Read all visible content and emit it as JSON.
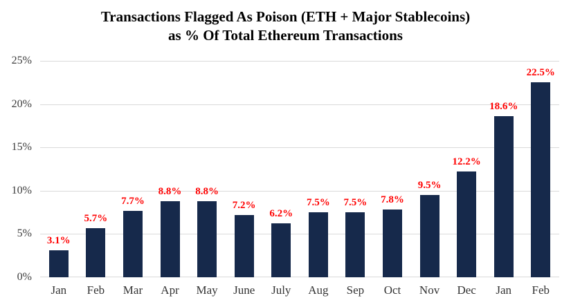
{
  "chart_data": {
    "type": "bar",
    "title": "Transactions Flagged As Poison (ETH + Major Stablecoins) as % Of Total Ethereum Transactions",
    "title_line1": "Transactions Flagged As Poison (ETH + Major Stablecoins)",
    "title_line2": "as % Of Total Ethereum Transactions",
    "categories": [
      "Jan",
      "Feb",
      "Mar",
      "Apr",
      "May",
      "June",
      "July",
      "Aug",
      "Sep",
      "Oct",
      "Nov",
      "Dec",
      "Jan",
      "Feb"
    ],
    "values": [
      3.1,
      5.7,
      7.7,
      8.8,
      8.8,
      7.2,
      6.2,
      7.5,
      7.5,
      7.8,
      9.5,
      12.2,
      18.6,
      22.5
    ],
    "data_labels": [
      "3.1%",
      "5.7%",
      "7.7%",
      "8.8%",
      "8.8%",
      "7.2%",
      "6.2%",
      "7.5%",
      "7.5%",
      "7.8%",
      "9.5%",
      "12.2%",
      "18.6%",
      "22.5%"
    ],
    "y_ticks": [
      "0%",
      "5%",
      "10%",
      "15%",
      "20%",
      "25%"
    ],
    "y_tick_values": [
      0,
      5,
      10,
      15,
      20,
      25
    ],
    "ylim": [
      0,
      25
    ],
    "xlabel": "",
    "ylabel": "",
    "grid": true,
    "legend_position": "none",
    "colors": {
      "bar": "#16294b",
      "data_label": "#ff0000",
      "gridline": "#d9d9d9",
      "axis_text": "#3d3d3d",
      "title_text": "#000000"
    }
  }
}
